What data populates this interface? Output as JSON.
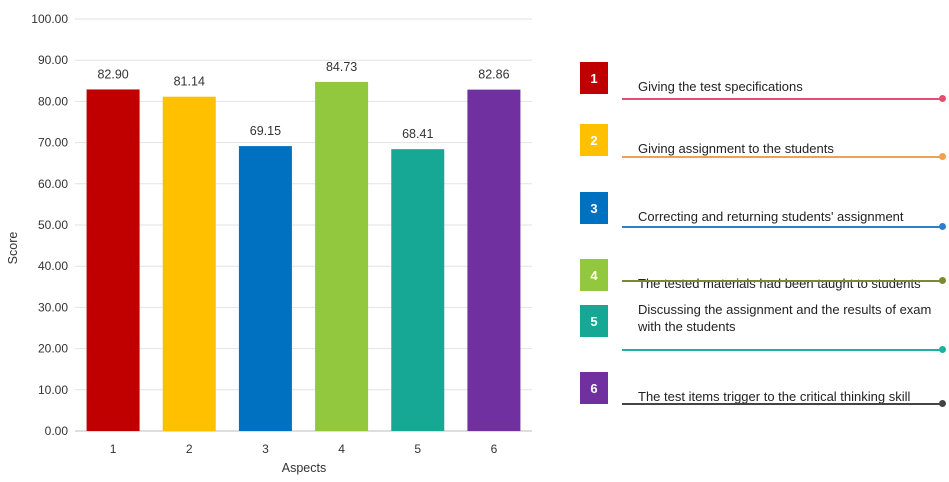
{
  "chart_data": {
    "type": "bar",
    "categories": [
      "1",
      "2",
      "3",
      "4",
      "5",
      "6"
    ],
    "values": [
      82.9,
      81.14,
      69.15,
      84.73,
      68.41,
      82.86
    ],
    "value_labels": [
      "82.90",
      "81.14",
      "69.15",
      "84.73",
      "68.41",
      "82.86"
    ],
    "colors": [
      "#c00000",
      "#ffc000",
      "#0070c0",
      "#92c83e",
      "#16a894",
      "#7030a0"
    ],
    "xlabel": "Aspects",
    "ylabel": "Score",
    "ylim": [
      0,
      100
    ],
    "yticks": [
      "0.00",
      "10.00",
      "20.00",
      "30.00",
      "40.00",
      "50.00",
      "60.00",
      "70.00",
      "80.00",
      "90.00",
      "100.00"
    ],
    "grid": true,
    "legend_position": "right"
  },
  "legend": {
    "items": [
      {
        "number": "1",
        "text": "Giving the test specifications",
        "color": "#c00000",
        "line_color": "#e05070"
      },
      {
        "number": "2",
        "text": "Giving assignment  to the students",
        "color": "#ffc000",
        "line_color": "#f0a050"
      },
      {
        "number": "3",
        "text": "Correcting and returning students' assignment",
        "color": "#0070c0",
        "line_color": "#2f7fc8"
      },
      {
        "number": "4",
        "text": "The tested materials had been taught to students",
        "color": "#92c83e",
        "line_color": "#7a8a30"
      },
      {
        "number": "5",
        "text": "Discussing  the assignment  and the results of exam with the students",
        "color": "#16a894",
        "line_color": "#20b0a0"
      },
      {
        "number": "6",
        "text": "The test items trigger to the critical thinking skill",
        "color": "#7030a0",
        "line_color": "#444444"
      }
    ]
  }
}
